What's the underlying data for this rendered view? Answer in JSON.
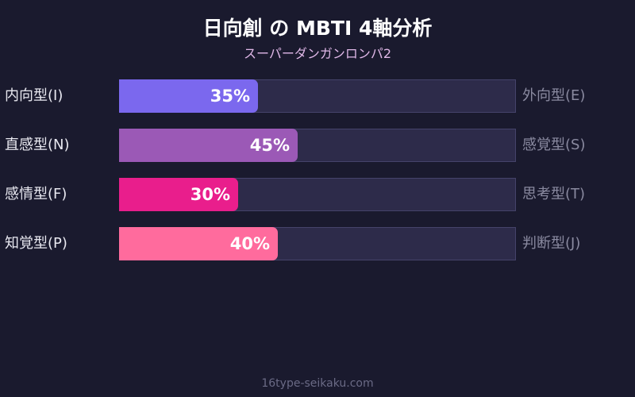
{
  "chart_data": {
    "type": "bar",
    "orientation": "horizontal-stacked-percent",
    "title": "日向創 の MBTI 4軸分析",
    "subtitle": "スーパーダンガンロンパ2",
    "xlim": [
      0,
      100
    ],
    "axes": [
      {
        "left": "内向型(I)",
        "right": "外向型(E)",
        "value": 35,
        "label": "35%",
        "color": "#7b68ee"
      },
      {
        "left": "直感型(N)",
        "right": "感覚型(S)",
        "value": 45,
        "label": "45%",
        "color": "#9b59b6"
      },
      {
        "left": "感情型(F)",
        "right": "思考型(T)",
        "value": 30,
        "label": "30%",
        "color": "#e91e8c"
      },
      {
        "left": "知覚型(P)",
        "right": "判断型(J)",
        "value": 40,
        "label": "40%",
        "color": "#ff6b9d"
      }
    ],
    "track_color": "#2d2b4a",
    "background": "#1a1a2e"
  },
  "footer": "16type-seikaku.com"
}
